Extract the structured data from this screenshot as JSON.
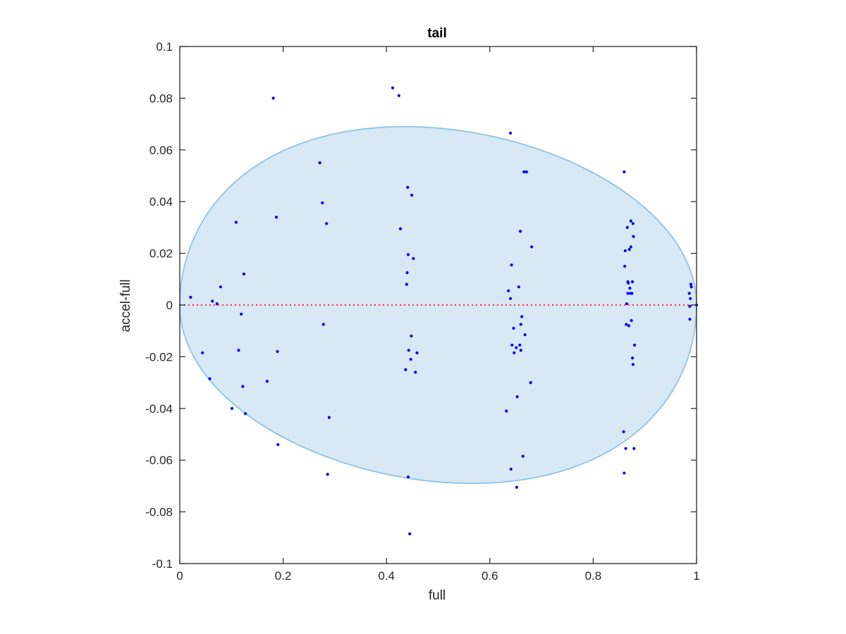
{
  "chart_data": {
    "type": "scatter",
    "title": "tail",
    "xlabel": "full",
    "ylabel": "accel-full",
    "xlim": [
      0,
      1
    ],
    "ylim": [
      -0.1,
      0.1
    ],
    "grid": false,
    "x_ticks": [
      {
        "value": 0,
        "label": "0"
      },
      {
        "value": 0.2,
        "label": "0.2"
      },
      {
        "value": 0.4,
        "label": "0.4"
      },
      {
        "value": 0.6,
        "label": "0.6"
      },
      {
        "value": 0.8,
        "label": "0.8"
      },
      {
        "value": 1,
        "label": "1"
      }
    ],
    "y_ticks": [
      {
        "value": 0.1,
        "label": "0.1"
      },
      {
        "value": 0.08,
        "label": "0.08"
      },
      {
        "value": 0.06,
        "label": "0.06"
      },
      {
        "value": 0.04,
        "label": "0.04"
      },
      {
        "value": 0.02,
        "label": "0.02"
      },
      {
        "value": 0,
        "label": "0"
      },
      {
        "value": -0.02,
        "label": "-0.02"
      },
      {
        "value": -0.04,
        "label": "-0.04"
      },
      {
        "value": -0.06,
        "label": "-0.06"
      },
      {
        "value": -0.08,
        "label": "-0.08"
      },
      {
        "value": -0.1,
        "label": "-0.1"
      }
    ],
    "colors": {
      "points": "#0000ee",
      "ellipse_fill": "#d8e8f5",
      "ellipse_stroke": "#8dc3e6",
      "reference_line": "#ee3333",
      "axes": "#262626"
    },
    "ellipse": {
      "center_x": 0.5,
      "center_y": 0,
      "radius_x": 0.5,
      "radius_y": 0.069,
      "top_peak_x": 0.435,
      "bottom_peak_x": 0.565
    },
    "reference_line_y": 0,
    "points": [
      {
        "x": 0.021,
        "y": 0.003
      },
      {
        "x": 0.044,
        "y": -0.0185
      },
      {
        "x": 0.058,
        "y": -0.0285
      },
      {
        "x": 0.063,
        "y": 0.0015
      },
      {
        "x": 0.072,
        "y": 0.0005
      },
      {
        "x": 0.079,
        "y": 0.007
      },
      {
        "x": 0.101,
        "y": -0.04
      },
      {
        "x": 0.109,
        "y": 0.032
      },
      {
        "x": 0.114,
        "y": -0.0175
      },
      {
        "x": 0.119,
        "y": -0.0035
      },
      {
        "x": 0.122,
        "y": -0.0315
      },
      {
        "x": 0.124,
        "y": 0.012
      },
      {
        "x": 0.127,
        "y": -0.042
      },
      {
        "x": 0.169,
        "y": -0.0295
      },
      {
        "x": 0.181,
        "y": 0.08
      },
      {
        "x": 0.187,
        "y": 0.034
      },
      {
        "x": 0.189,
        "y": -0.018
      },
      {
        "x": 0.19,
        "y": -0.054
      },
      {
        "x": 0.271,
        "y": 0.055
      },
      {
        "x": 0.276,
        "y": 0.0395
      },
      {
        "x": 0.278,
        "y": -0.0075
      },
      {
        "x": 0.284,
        "y": 0.0315
      },
      {
        "x": 0.286,
        "y": -0.0655
      },
      {
        "x": 0.289,
        "y": -0.0435
      },
      {
        "x": 0.412,
        "y": 0.084
      },
      {
        "x": 0.424,
        "y": 0.081
      },
      {
        "x": 0.427,
        "y": 0.0295
      },
      {
        "x": 0.437,
        "y": -0.025
      },
      {
        "x": 0.439,
        "y": 0.008
      },
      {
        "x": 0.44,
        "y": 0.0125
      },
      {
        "x": 0.441,
        "y": 0.0455
      },
      {
        "x": 0.442,
        "y": 0.0195
      },
      {
        "x": 0.442,
        "y": -0.0665
      },
      {
        "x": 0.443,
        "y": -0.0175
      },
      {
        "x": 0.445,
        "y": -0.0885
      },
      {
        "x": 0.447,
        "y": -0.021
      },
      {
        "x": 0.448,
        "y": -0.012
      },
      {
        "x": 0.449,
        "y": 0.0425
      },
      {
        "x": 0.452,
        "y": 0.018
      },
      {
        "x": 0.456,
        "y": -0.026
      },
      {
        "x": 0.459,
        "y": -0.0185
      },
      {
        "x": 0.632,
        "y": -0.041
      },
      {
        "x": 0.636,
        "y": 0.0055
      },
      {
        "x": 0.64,
        "y": 0.0025
      },
      {
        "x": 0.64,
        "y": 0.0665
      },
      {
        "x": 0.641,
        "y": -0.0635
      },
      {
        "x": 0.642,
        "y": 0.0155
      },
      {
        "x": 0.643,
        "y": -0.0155
      },
      {
        "x": 0.646,
        "y": -0.009
      },
      {
        "x": 0.647,
        "y": -0.0185
      },
      {
        "x": 0.651,
        "y": -0.0165
      },
      {
        "x": 0.652,
        "y": -0.0705
      },
      {
        "x": 0.653,
        "y": -0.0355
      },
      {
        "x": 0.656,
        "y": 0.007
      },
      {
        "x": 0.658,
        "y": -0.0155
      },
      {
        "x": 0.659,
        "y": 0.0285
      },
      {
        "x": 0.66,
        "y": -0.0075
      },
      {
        "x": 0.66,
        "y": -0.0175
      },
      {
        "x": 0.662,
        "y": -0.0045
      },
      {
        "x": 0.664,
        "y": -0.0585
      },
      {
        "x": 0.666,
        "y": 0.0515
      },
      {
        "x": 0.668,
        "y": -0.0115
      },
      {
        "x": 0.671,
        "y": 0.0515
      },
      {
        "x": 0.679,
        "y": -0.03
      },
      {
        "x": 0.681,
        "y": 0.0225
      },
      {
        "x": 0.859,
        "y": -0.049
      },
      {
        "x": 0.86,
        "y": 0.0515
      },
      {
        "x": 0.86,
        "y": -0.065
      },
      {
        "x": 0.861,
        "y": 0.015
      },
      {
        "x": 0.862,
        "y": 0.021
      },
      {
        "x": 0.863,
        "y": -0.0555
      },
      {
        "x": 0.864,
        "y": -0.0075
      },
      {
        "x": 0.865,
        "y": 0.0005
      },
      {
        "x": 0.866,
        "y": 0.03
      },
      {
        "x": 0.867,
        "y": 0.0045
      },
      {
        "x": 0.867,
        "y": 0.009
      },
      {
        "x": 0.868,
        "y": 0.0085
      },
      {
        "x": 0.869,
        "y": -0.008
      },
      {
        "x": 0.87,
        "y": 0.0215
      },
      {
        "x": 0.871,
        "y": 0.0065
      },
      {
        "x": 0.872,
        "y": 0.0045
      },
      {
        "x": 0.873,
        "y": 0.0225
      },
      {
        "x": 0.873,
        "y": 0.0325
      },
      {
        "x": 0.874,
        "y": -0.006
      },
      {
        "x": 0.875,
        "y": 0.0045
      },
      {
        "x": 0.876,
        "y": 0.009
      },
      {
        "x": 0.876,
        "y": -0.0205
      },
      {
        "x": 0.877,
        "y": 0.0315
      },
      {
        "x": 0.877,
        "y": -0.023
      },
      {
        "x": 0.878,
        "y": 0.0265
      },
      {
        "x": 0.879,
        "y": -0.0555
      },
      {
        "x": 0.88,
        "y": -0.0155
      },
      {
        "x": 0.986,
        "y": 0.0045
      },
      {
        "x": 0.987,
        "y": -0.0005
      },
      {
        "x": 0.987,
        "y": -0.0055
      },
      {
        "x": 0.988,
        "y": 0.0025
      },
      {
        "x": 0.989,
        "y": 0.008
      },
      {
        "x": 0.99,
        "y": 0.007
      },
      {
        "x": 1.0,
        "y": 0.0
      }
    ]
  }
}
